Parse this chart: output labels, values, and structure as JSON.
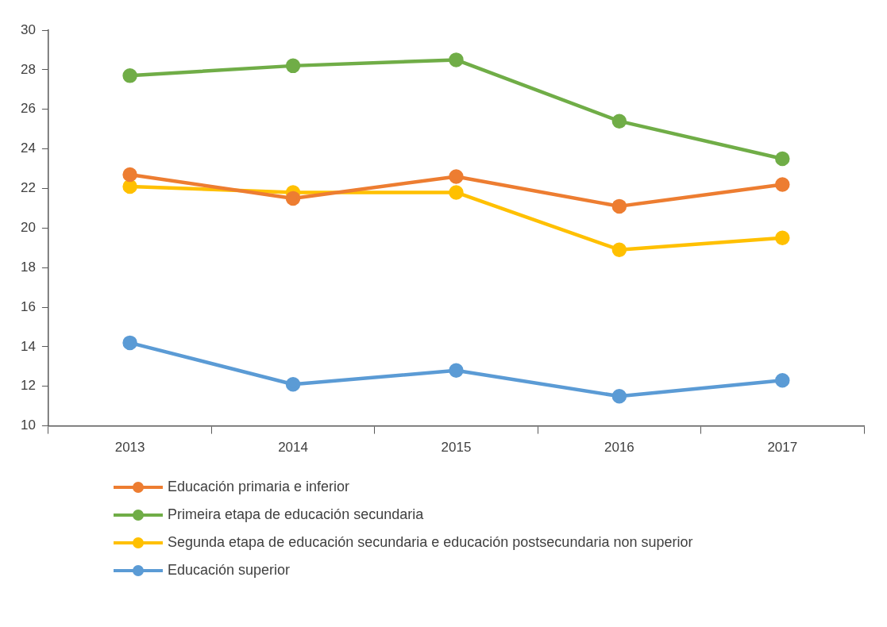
{
  "chart_data": {
    "type": "line",
    "categories": [
      "2013",
      "2014",
      "2015",
      "2016",
      "2017"
    ],
    "series": [
      {
        "name": "Educación primaria e inferior",
        "color": "#ed7d31",
        "values": [
          22.7,
          21.5,
          22.6,
          21.1,
          22.2
        ]
      },
      {
        "name": "Primeira etapa de educación secundaria",
        "color": "#70ad47",
        "values": [
          27.7,
          28.2,
          28.5,
          25.4,
          23.5
        ]
      },
      {
        "name": "Segunda etapa de educación secundaria e educación postsecundaria non superior",
        "color": "#ffc000",
        "values": [
          22.1,
          21.8,
          21.8,
          18.9,
          19.5
        ]
      },
      {
        "name": "Educación superior",
        "color": "#5b9bd5",
        "values": [
          14.2,
          12.1,
          12.8,
          11.5,
          12.3
        ]
      }
    ],
    "ylim": [
      10,
      30
    ],
    "yticks": [
      10,
      12,
      14,
      16,
      18,
      20,
      22,
      24,
      26,
      28,
      30
    ],
    "grid": false,
    "legend": "bottom",
    "marker": "circle",
    "line_style": "solid"
  }
}
